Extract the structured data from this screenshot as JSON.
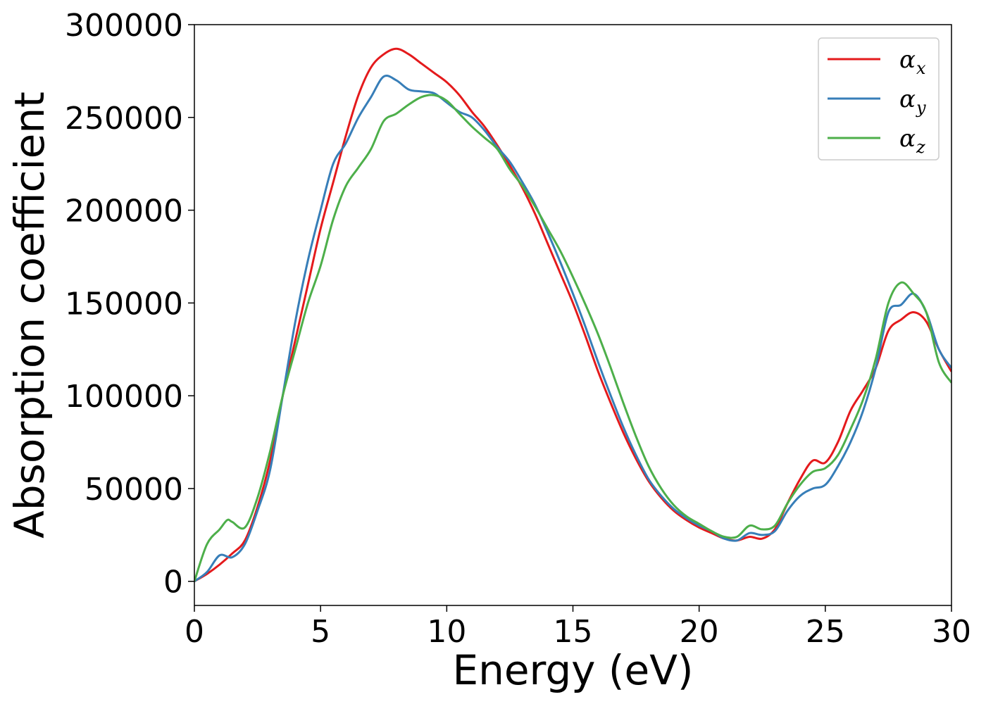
{
  "chart_data": {
    "type": "line",
    "title": "",
    "xlabel": "Energy (eV)",
    "ylabel": "Absorption coefficient",
    "xlim": [
      0,
      30
    ],
    "ylim": [
      -13000,
      300000
    ],
    "xticks": [
      0,
      5,
      10,
      15,
      20,
      25,
      30
    ],
    "yticks": [
      0,
      50000,
      100000,
      150000,
      200000,
      250000,
      300000
    ],
    "xtick_labels": [
      "0",
      "5",
      "10",
      "15",
      "20",
      "25",
      "30"
    ],
    "ytick_labels": [
      "0",
      "50000",
      "100000",
      "150000",
      "200000",
      "250000",
      "300000"
    ],
    "grid": false,
    "legend_position": "top-right",
    "series": [
      {
        "name": "α",
        "subscript": "x",
        "color": "#e41a1c",
        "points": [
          [
            0,
            0
          ],
          [
            0.5,
            4000
          ],
          [
            1,
            9000
          ],
          [
            1.5,
            15000
          ],
          [
            2,
            22000
          ],
          [
            2.5,
            40000
          ],
          [
            3,
            65000
          ],
          [
            3.5,
            100000
          ],
          [
            4,
            130000
          ],
          [
            4.5,
            160000
          ],
          [
            5,
            190000
          ],
          [
            5.5,
            215000
          ],
          [
            6,
            240000
          ],
          [
            6.5,
            262000
          ],
          [
            7,
            277000
          ],
          [
            7.5,
            284000
          ],
          [
            8,
            287000
          ],
          [
            8.5,
            284000
          ],
          [
            9,
            279000
          ],
          [
            9.5,
            274000
          ],
          [
            10,
            269000
          ],
          [
            10.5,
            262000
          ],
          [
            11,
            253000
          ],
          [
            11.5,
            245000
          ],
          [
            12,
            235000
          ],
          [
            12.5,
            224000
          ],
          [
            13,
            212000
          ],
          [
            13.5,
            198000
          ],
          [
            14,
            182000
          ],
          [
            14.5,
            166000
          ],
          [
            15,
            150000
          ],
          [
            15.5,
            132000
          ],
          [
            16,
            113000
          ],
          [
            16.5,
            96000
          ],
          [
            17,
            80000
          ],
          [
            17.5,
            66000
          ],
          [
            18,
            54000
          ],
          [
            18.5,
            45000
          ],
          [
            19,
            38000
          ],
          [
            19.5,
            33000
          ],
          [
            20,
            29000
          ],
          [
            20.5,
            26000
          ],
          [
            21,
            23000
          ],
          [
            21.5,
            22000
          ],
          [
            22,
            24000
          ],
          [
            22.5,
            23000
          ],
          [
            23,
            28000
          ],
          [
            23.5,
            42000
          ],
          [
            24,
            55000
          ],
          [
            24.5,
            65000
          ],
          [
            25,
            64000
          ],
          [
            25.5,
            75000
          ],
          [
            26,
            92000
          ],
          [
            26.5,
            103000
          ],
          [
            27,
            115000
          ],
          [
            27.5,
            135000
          ],
          [
            28,
            141000
          ],
          [
            28.5,
            145000
          ],
          [
            29,
            140000
          ],
          [
            29.5,
            125000
          ],
          [
            30,
            113000
          ]
        ]
      },
      {
        "name": "α",
        "subscript": "y",
        "color": "#377eb8",
        "points": [
          [
            0,
            0
          ],
          [
            0.5,
            5000
          ],
          [
            1,
            14000
          ],
          [
            1.5,
            13000
          ],
          [
            2,
            20000
          ],
          [
            2.5,
            38000
          ],
          [
            3,
            60000
          ],
          [
            3.5,
            100000
          ],
          [
            4,
            140000
          ],
          [
            4.5,
            173000
          ],
          [
            5,
            200000
          ],
          [
            5.5,
            225000
          ],
          [
            6,
            236000
          ],
          [
            6.5,
            250000
          ],
          [
            7,
            261000
          ],
          [
            7.5,
            272000
          ],
          [
            8,
            270000
          ],
          [
            8.5,
            265000
          ],
          [
            9,
            264000
          ],
          [
            9.5,
            263000
          ],
          [
            10,
            258000
          ],
          [
            10.5,
            253000
          ],
          [
            11,
            250000
          ],
          [
            11.5,
            243000
          ],
          [
            12,
            234000
          ],
          [
            12.5,
            226000
          ],
          [
            13,
            215000
          ],
          [
            13.5,
            203000
          ],
          [
            14,
            188000
          ],
          [
            14.5,
            172000
          ],
          [
            15,
            155000
          ],
          [
            15.5,
            137000
          ],
          [
            16,
            118000
          ],
          [
            16.5,
            100000
          ],
          [
            17,
            83000
          ],
          [
            17.5,
            68000
          ],
          [
            18,
            55000
          ],
          [
            18.5,
            46000
          ],
          [
            19,
            39000
          ],
          [
            19.5,
            34000
          ],
          [
            20,
            30000
          ],
          [
            20.5,
            27000
          ],
          [
            21,
            23000
          ],
          [
            21.5,
            22000
          ],
          [
            22,
            26000
          ],
          [
            22.5,
            25000
          ],
          [
            23,
            27000
          ],
          [
            23.5,
            38000
          ],
          [
            24,
            46000
          ],
          [
            24.5,
            50000
          ],
          [
            25,
            52000
          ],
          [
            25.5,
            62000
          ],
          [
            26,
            75000
          ],
          [
            26.5,
            92000
          ],
          [
            27,
            115000
          ],
          [
            27.5,
            145000
          ],
          [
            28,
            149000
          ],
          [
            28.5,
            155000
          ],
          [
            29,
            145000
          ],
          [
            29.5,
            125000
          ],
          [
            30,
            115000
          ]
        ]
      },
      {
        "name": "α",
        "subscript": "z",
        "color": "#4daf4a",
        "points": [
          [
            0,
            0
          ],
          [
            0.5,
            20000
          ],
          [
            1,
            28000
          ],
          [
            1.3,
            33000
          ],
          [
            1.5,
            32000
          ],
          [
            2,
            29000
          ],
          [
            2.5,
            45000
          ],
          [
            3,
            70000
          ],
          [
            3.5,
            100000
          ],
          [
            4,
            125000
          ],
          [
            4.5,
            150000
          ],
          [
            5,
            170000
          ],
          [
            5.5,
            195000
          ],
          [
            6,
            213000
          ],
          [
            6.5,
            223000
          ],
          [
            7,
            233000
          ],
          [
            7.5,
            248000
          ],
          [
            8,
            252000
          ],
          [
            8.5,
            257000
          ],
          [
            9,
            261000
          ],
          [
            9.5,
            262000
          ],
          [
            10,
            259000
          ],
          [
            10.5,
            252000
          ],
          [
            11,
            245000
          ],
          [
            11.5,
            239000
          ],
          [
            12,
            233000
          ],
          [
            12.5,
            222000
          ],
          [
            13,
            213000
          ],
          [
            13.5,
            202000
          ],
          [
            14,
            190000
          ],
          [
            14.5,
            178000
          ],
          [
            15,
            164000
          ],
          [
            15.5,
            149000
          ],
          [
            16,
            133000
          ],
          [
            16.5,
            115000
          ],
          [
            17,
            96000
          ],
          [
            17.5,
            78000
          ],
          [
            18,
            62000
          ],
          [
            18.5,
            50000
          ],
          [
            19,
            41000
          ],
          [
            19.5,
            35000
          ],
          [
            20,
            31000
          ],
          [
            20.5,
            27000
          ],
          [
            21,
            24000
          ],
          [
            21.5,
            24000
          ],
          [
            22,
            30000
          ],
          [
            22.5,
            28000
          ],
          [
            23,
            30000
          ],
          [
            23.5,
            42000
          ],
          [
            24,
            52000
          ],
          [
            24.5,
            59000
          ],
          [
            25,
            61000
          ],
          [
            25.5,
            68000
          ],
          [
            26,
            82000
          ],
          [
            26.5,
            98000
          ],
          [
            27,
            120000
          ],
          [
            27.5,
            150000
          ],
          [
            28,
            161000
          ],
          [
            28.5,
            155000
          ],
          [
            29,
            145000
          ],
          [
            29.5,
            118000
          ],
          [
            30,
            107000
          ]
        ]
      }
    ]
  }
}
